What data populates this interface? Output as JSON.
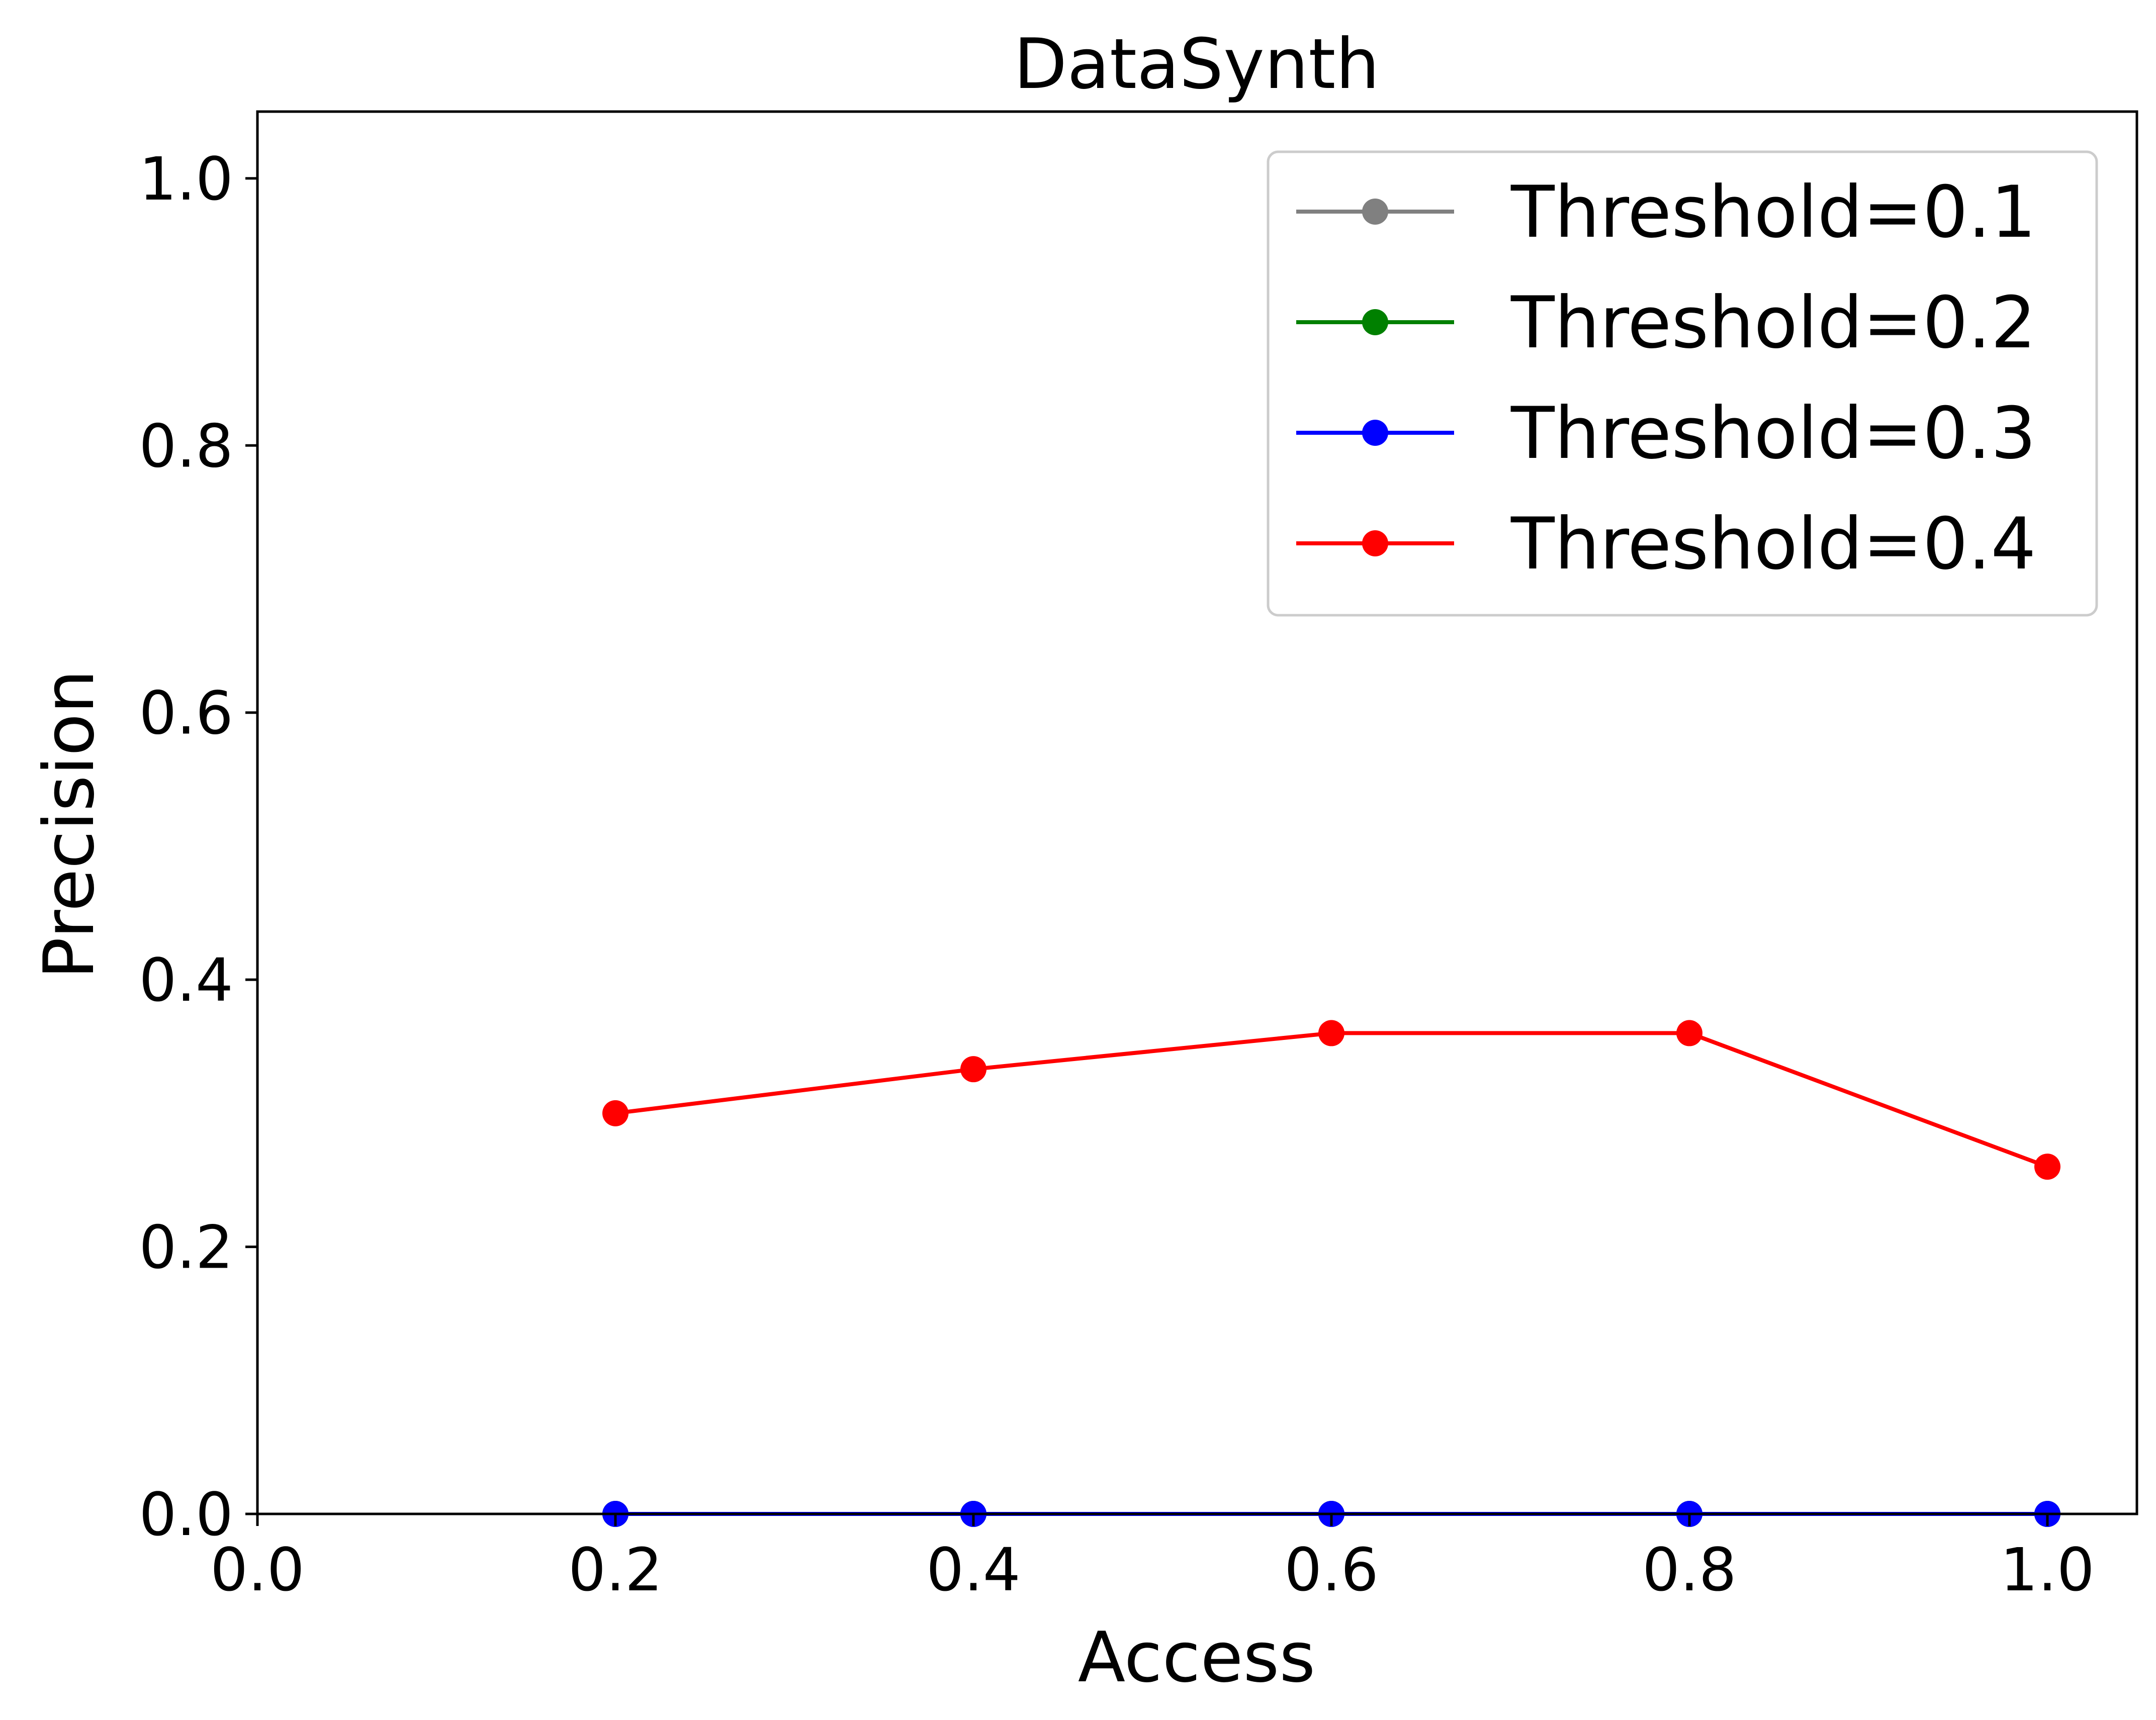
{
  "chart_data": {
    "type": "line",
    "title": "DataSynth",
    "xlabel": "Access",
    "ylabel": "Precision",
    "xlim": [
      0.0,
      1.05
    ],
    "ylim": [
      0.0,
      1.05
    ],
    "xticks": [
      "0.0",
      "0.2",
      "0.4",
      "0.6",
      "0.8",
      "1.0"
    ],
    "xtick_values": [
      0.0,
      0.2,
      0.4,
      0.6,
      0.8,
      1.0
    ],
    "yticks": [
      "0.0",
      "0.2",
      "0.4",
      "0.6",
      "0.8",
      "1.0"
    ],
    "ytick_values": [
      0.0,
      0.2,
      0.4,
      0.6,
      0.8,
      1.0
    ],
    "grid": false,
    "legend_position": "top-right",
    "x": [
      0.2,
      0.4,
      0.6,
      0.8,
      1.0
    ],
    "series": [
      {
        "name": "Threshold=0.1",
        "color": "#808080",
        "values": [
          0.0,
          0.0,
          0.0,
          0.0,
          0.0
        ]
      },
      {
        "name": "Threshold=0.2",
        "color": "#008000",
        "values": [
          0.0,
          0.0,
          0.0,
          0.0,
          0.0
        ]
      },
      {
        "name": "Threshold=0.3",
        "color": "#0000ff",
        "values": [
          0.0,
          0.0,
          0.0,
          0.0,
          0.0
        ]
      },
      {
        "name": "Threshold=0.4",
        "color": "#ff0000",
        "values": [
          0.3,
          0.333,
          0.36,
          0.36,
          0.26
        ]
      }
    ]
  }
}
